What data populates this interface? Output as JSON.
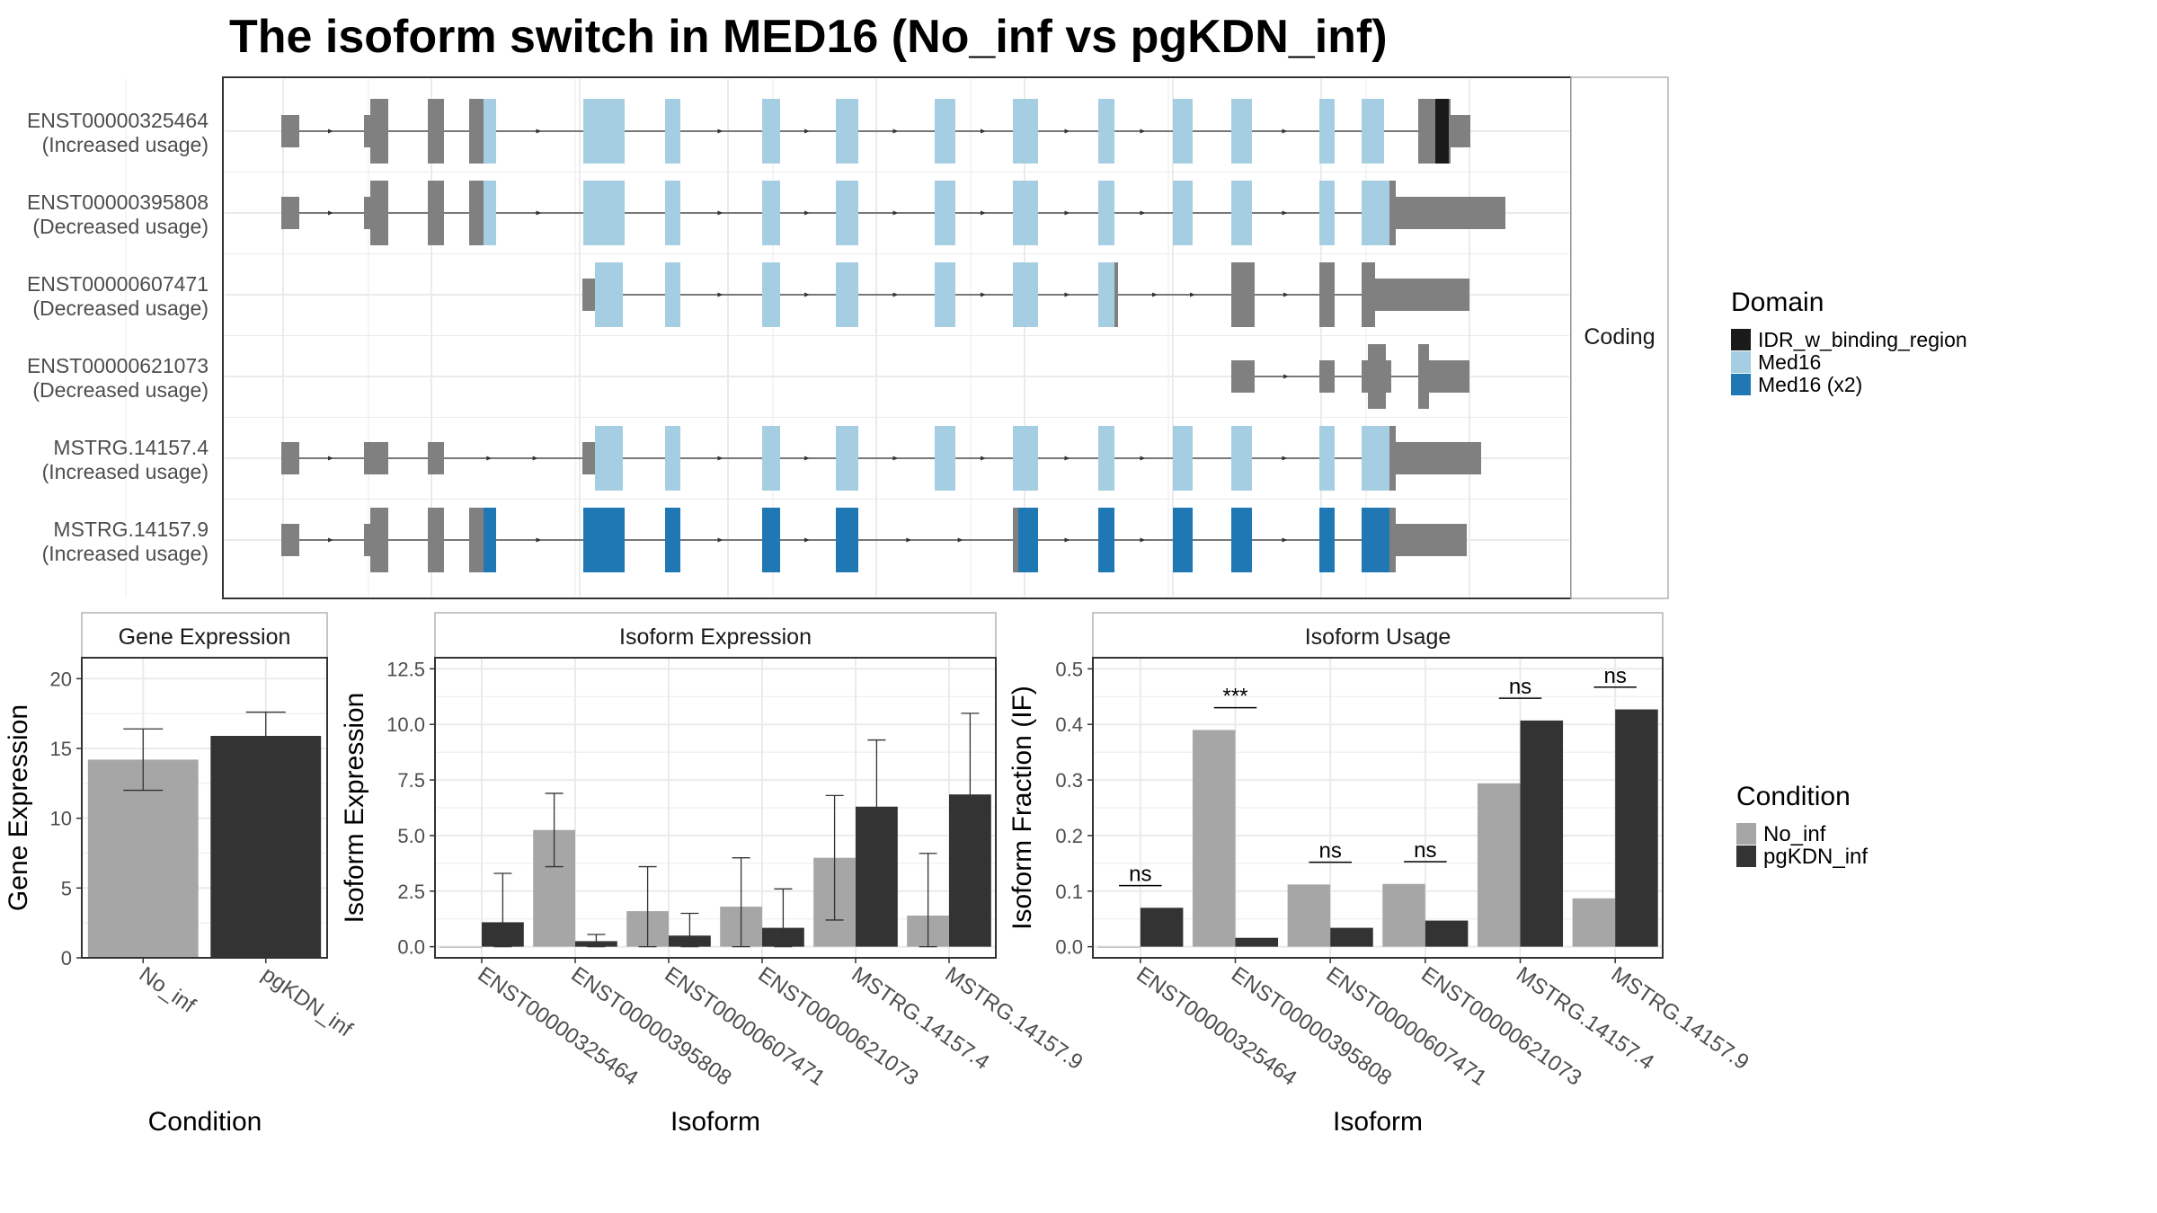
{
  "title": "The isoform switch in MED16 (No_inf vs pgKDN_inf)",
  "colors": {
    "exon_other": "#808080",
    "IDR_w_binding_region": "#1a1a1a",
    "Med16": "#a6cee3",
    "Med16_x2": "#1f78b4",
    "No_inf": "#a6a6a6",
    "pgKDN_inf": "#333333",
    "grid": "#ebebeb",
    "panel_border": "#333333",
    "strip_border": "#b3b3b3"
  },
  "transcripts": {
    "strip_label": "Coding",
    "rows": [
      {
        "id": "ENST00000325464",
        "status": "(Increased usage)"
      },
      {
        "id": "ENST00000395808",
        "status": "(Decreased usage)"
      },
      {
        "id": "ENST00000607471",
        "status": "(Decreased usage)"
      },
      {
        "id": "ENST00000621073",
        "status": "(Decreased usage)"
      },
      {
        "id": "MSTRG.14157.4",
        "status": "(Increased usage)"
      },
      {
        "id": "MSTRG.14157.9",
        "status": "(Increased usage)"
      }
    ]
  },
  "domain_legend": {
    "title": "Domain",
    "items": [
      {
        "label": "IDR_w_binding_region",
        "color_key": "IDR_w_binding_region"
      },
      {
        "label": "Med16",
        "color_key": "Med16"
      },
      {
        "label": "Med16 (x2)",
        "color_key": "Med16_x2"
      }
    ]
  },
  "condition_legend": {
    "title": "Condition",
    "items": [
      {
        "label": "No_inf",
        "color_key": "No_inf"
      },
      {
        "label": "pgKDN_inf",
        "color_key": "pgKDN_inf"
      }
    ]
  },
  "chart_data": [
    {
      "type": "bar",
      "panel": "Gene Expression",
      "title": "Gene Expression",
      "categories": [
        "No_inf",
        "pgKDN_inf"
      ],
      "values": [
        14.2,
        15.9
      ],
      "ci_low": [
        12.0,
        14.1
      ],
      "ci_high": [
        16.4,
        17.6
      ],
      "xlabel": "Condition",
      "ylabel": "Gene Expression",
      "ylim": [
        0,
        21.5
      ],
      "yticks": [
        0,
        5,
        10,
        15,
        20
      ],
      "ytick_labels": [
        "0",
        "5",
        "10",
        "15",
        "20"
      ],
      "grid": true
    },
    {
      "type": "bar",
      "panel": "Isoform Expression",
      "title": "Isoform Expression",
      "categories": [
        "ENST00000325464",
        "ENST00000395808",
        "ENST00000607471",
        "ENST00000621073",
        "MSTRG.14157.4",
        "MSTRG.14157.9"
      ],
      "series": [
        {
          "name": "No_inf",
          "values": [
            0.0,
            5.25,
            1.6,
            1.8,
            4.0,
            1.4
          ],
          "ci_low": [
            0.0,
            3.6,
            0.0,
            0.0,
            1.2,
            0.0
          ],
          "ci_high": [
            0.0,
            6.9,
            3.6,
            4.0,
            6.8,
            4.2
          ]
        },
        {
          "name": "pgKDN_inf",
          "values": [
            1.1,
            0.25,
            0.5,
            0.85,
            6.3,
            6.85
          ],
          "ci_low": [
            0.0,
            0.0,
            0.0,
            0.0,
            3.3,
            3.2
          ],
          "ci_high": [
            3.3,
            0.55,
            1.5,
            2.6,
            9.3,
            10.5
          ]
        }
      ],
      "xlabel": "Isoform",
      "ylabel": "Isoform Expression",
      "ylim": [
        -0.5,
        13.0
      ],
      "yticks": [
        0,
        2.5,
        5,
        7.5,
        10,
        12.5
      ],
      "ytick_labels": [
        "0.0",
        "2.5",
        "5.0",
        "7.5",
        "10.0",
        "12.5"
      ],
      "grid": true
    },
    {
      "type": "bar",
      "panel": "Isoform Usage",
      "title": "Isoform Usage",
      "categories": [
        "ENST00000325464",
        "ENST00000395808",
        "ENST00000607471",
        "ENST00000621073",
        "MSTRG.14157.4",
        "MSTRG.14157.9"
      ],
      "series": [
        {
          "name": "No_inf",
          "values": [
            0.0,
            0.39,
            0.112,
            0.113,
            0.294,
            0.087
          ]
        },
        {
          "name": "pgKDN_inf",
          "values": [
            0.07,
            0.016,
            0.034,
            0.047,
            0.407,
            0.427
          ]
        }
      ],
      "significance": [
        "ns",
        "***",
        "ns",
        "ns",
        "ns",
        "ns"
      ],
      "xlabel": "Isoform",
      "ylabel": "Isoform Fraction (IF)",
      "ylim": [
        -0.02,
        0.52
      ],
      "yticks": [
        0,
        0.1,
        0.2,
        0.3,
        0.4,
        0.5
      ],
      "ytick_labels": [
        "0.0",
        "0.1",
        "0.2",
        "0.3",
        "0.4",
        "0.5"
      ],
      "grid": true
    }
  ]
}
